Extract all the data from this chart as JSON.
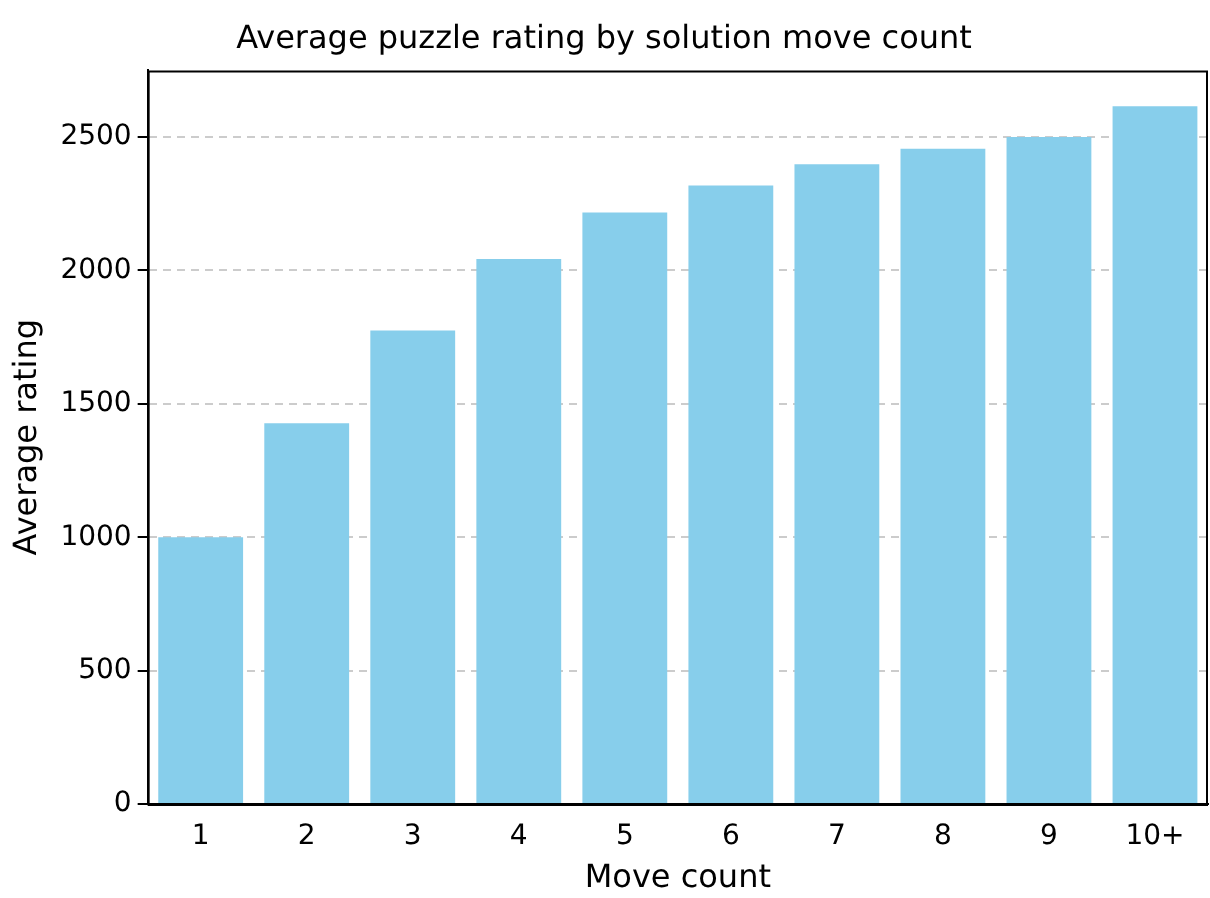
{
  "chart_data": {
    "type": "bar",
    "title": "Average puzzle rating by solution move count",
    "xlabel": "Move count",
    "ylabel": "Average rating",
    "categories": [
      "1",
      "2",
      "3",
      "4",
      "5",
      "6",
      "7",
      "8",
      "9",
      "10+"
    ],
    "values": [
      1000,
      1427,
      1775,
      2043,
      2217,
      2319,
      2398,
      2456,
      2500,
      2616
    ],
    "color": "#87ceeb",
    "ylim": [
      0,
      2750
    ],
    "yticks": [
      0,
      500,
      1000,
      1500,
      2000,
      2500
    ],
    "grid": "y"
  }
}
